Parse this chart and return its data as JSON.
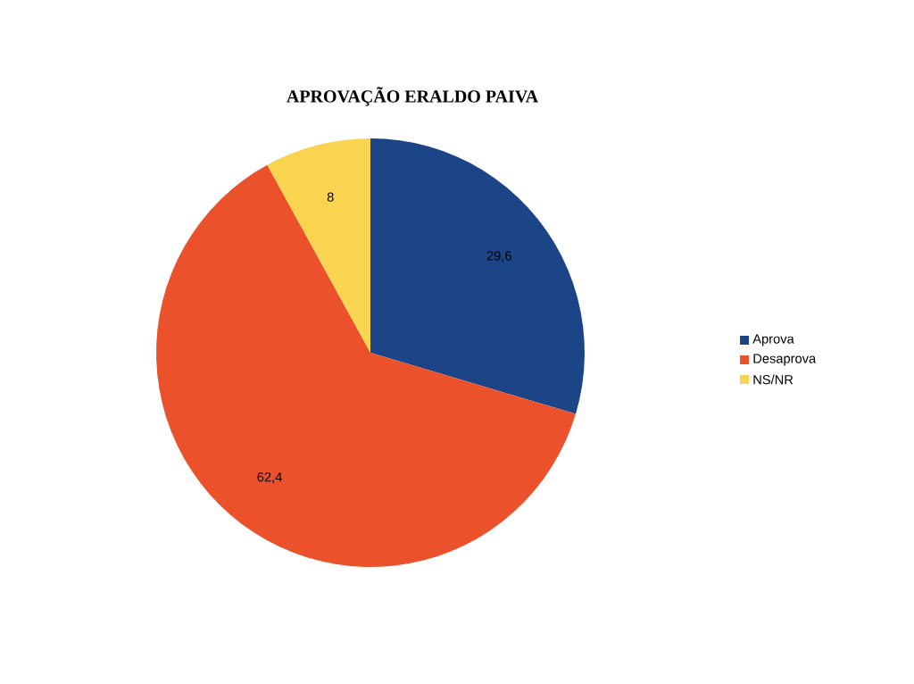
{
  "chart_data": {
    "type": "pie",
    "title": "APROVAÇÃO ERALDO PAIVA",
    "categories": [
      "Aprova",
      "Desaprova",
      "NS/NR"
    ],
    "values": [
      29.6,
      62.4,
      8
    ],
    "colors": [
      "#1c4587",
      "#eb522b",
      "#f9d451"
    ],
    "value_labels": [
      "29,6",
      "62,4",
      "8"
    ],
    "legend": "right"
  }
}
